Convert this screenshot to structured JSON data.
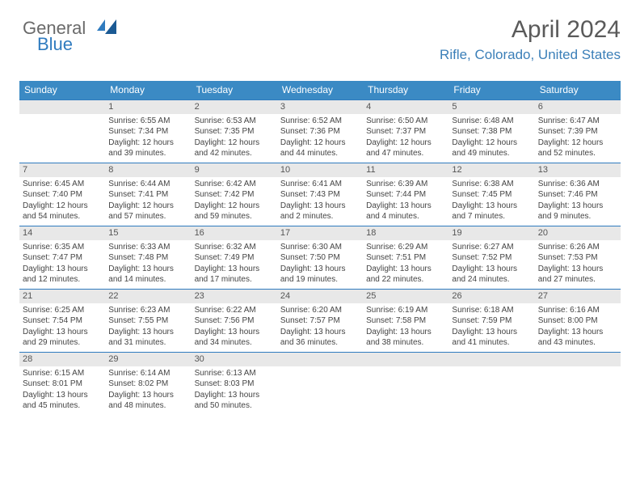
{
  "logo": {
    "line1": "General",
    "line2": "Blue"
  },
  "title": "April 2024",
  "subtitle": "Rifle, Colorado, United States",
  "colors": {
    "header_bg": "#3b8ac4",
    "accent": "#2f7bbf",
    "daynum_bg": "#e8e8e8",
    "text": "#444444"
  },
  "day_names": [
    "Sunday",
    "Monday",
    "Tuesday",
    "Wednesday",
    "Thursday",
    "Friday",
    "Saturday"
  ],
  "weeks": [
    [
      {
        "n": "",
        "sr": "",
        "ss": "",
        "dl": ""
      },
      {
        "n": "1",
        "sr": "Sunrise: 6:55 AM",
        "ss": "Sunset: 7:34 PM",
        "dl": "Daylight: 12 hours and 39 minutes."
      },
      {
        "n": "2",
        "sr": "Sunrise: 6:53 AM",
        "ss": "Sunset: 7:35 PM",
        "dl": "Daylight: 12 hours and 42 minutes."
      },
      {
        "n": "3",
        "sr": "Sunrise: 6:52 AM",
        "ss": "Sunset: 7:36 PM",
        "dl": "Daylight: 12 hours and 44 minutes."
      },
      {
        "n": "4",
        "sr": "Sunrise: 6:50 AM",
        "ss": "Sunset: 7:37 PM",
        "dl": "Daylight: 12 hours and 47 minutes."
      },
      {
        "n": "5",
        "sr": "Sunrise: 6:48 AM",
        "ss": "Sunset: 7:38 PM",
        "dl": "Daylight: 12 hours and 49 minutes."
      },
      {
        "n": "6",
        "sr": "Sunrise: 6:47 AM",
        "ss": "Sunset: 7:39 PM",
        "dl": "Daylight: 12 hours and 52 minutes."
      }
    ],
    [
      {
        "n": "7",
        "sr": "Sunrise: 6:45 AM",
        "ss": "Sunset: 7:40 PM",
        "dl": "Daylight: 12 hours and 54 minutes."
      },
      {
        "n": "8",
        "sr": "Sunrise: 6:44 AM",
        "ss": "Sunset: 7:41 PM",
        "dl": "Daylight: 12 hours and 57 minutes."
      },
      {
        "n": "9",
        "sr": "Sunrise: 6:42 AM",
        "ss": "Sunset: 7:42 PM",
        "dl": "Daylight: 12 hours and 59 minutes."
      },
      {
        "n": "10",
        "sr": "Sunrise: 6:41 AM",
        "ss": "Sunset: 7:43 PM",
        "dl": "Daylight: 13 hours and 2 minutes."
      },
      {
        "n": "11",
        "sr": "Sunrise: 6:39 AM",
        "ss": "Sunset: 7:44 PM",
        "dl": "Daylight: 13 hours and 4 minutes."
      },
      {
        "n": "12",
        "sr": "Sunrise: 6:38 AM",
        "ss": "Sunset: 7:45 PM",
        "dl": "Daylight: 13 hours and 7 minutes."
      },
      {
        "n": "13",
        "sr": "Sunrise: 6:36 AM",
        "ss": "Sunset: 7:46 PM",
        "dl": "Daylight: 13 hours and 9 minutes."
      }
    ],
    [
      {
        "n": "14",
        "sr": "Sunrise: 6:35 AM",
        "ss": "Sunset: 7:47 PM",
        "dl": "Daylight: 13 hours and 12 minutes."
      },
      {
        "n": "15",
        "sr": "Sunrise: 6:33 AM",
        "ss": "Sunset: 7:48 PM",
        "dl": "Daylight: 13 hours and 14 minutes."
      },
      {
        "n": "16",
        "sr": "Sunrise: 6:32 AM",
        "ss": "Sunset: 7:49 PM",
        "dl": "Daylight: 13 hours and 17 minutes."
      },
      {
        "n": "17",
        "sr": "Sunrise: 6:30 AM",
        "ss": "Sunset: 7:50 PM",
        "dl": "Daylight: 13 hours and 19 minutes."
      },
      {
        "n": "18",
        "sr": "Sunrise: 6:29 AM",
        "ss": "Sunset: 7:51 PM",
        "dl": "Daylight: 13 hours and 22 minutes."
      },
      {
        "n": "19",
        "sr": "Sunrise: 6:27 AM",
        "ss": "Sunset: 7:52 PM",
        "dl": "Daylight: 13 hours and 24 minutes."
      },
      {
        "n": "20",
        "sr": "Sunrise: 6:26 AM",
        "ss": "Sunset: 7:53 PM",
        "dl": "Daylight: 13 hours and 27 minutes."
      }
    ],
    [
      {
        "n": "21",
        "sr": "Sunrise: 6:25 AM",
        "ss": "Sunset: 7:54 PM",
        "dl": "Daylight: 13 hours and 29 minutes."
      },
      {
        "n": "22",
        "sr": "Sunrise: 6:23 AM",
        "ss": "Sunset: 7:55 PM",
        "dl": "Daylight: 13 hours and 31 minutes."
      },
      {
        "n": "23",
        "sr": "Sunrise: 6:22 AM",
        "ss": "Sunset: 7:56 PM",
        "dl": "Daylight: 13 hours and 34 minutes."
      },
      {
        "n": "24",
        "sr": "Sunrise: 6:20 AM",
        "ss": "Sunset: 7:57 PM",
        "dl": "Daylight: 13 hours and 36 minutes."
      },
      {
        "n": "25",
        "sr": "Sunrise: 6:19 AM",
        "ss": "Sunset: 7:58 PM",
        "dl": "Daylight: 13 hours and 38 minutes."
      },
      {
        "n": "26",
        "sr": "Sunrise: 6:18 AM",
        "ss": "Sunset: 7:59 PM",
        "dl": "Daylight: 13 hours and 41 minutes."
      },
      {
        "n": "27",
        "sr": "Sunrise: 6:16 AM",
        "ss": "Sunset: 8:00 PM",
        "dl": "Daylight: 13 hours and 43 minutes."
      }
    ],
    [
      {
        "n": "28",
        "sr": "Sunrise: 6:15 AM",
        "ss": "Sunset: 8:01 PM",
        "dl": "Daylight: 13 hours and 45 minutes."
      },
      {
        "n": "29",
        "sr": "Sunrise: 6:14 AM",
        "ss": "Sunset: 8:02 PM",
        "dl": "Daylight: 13 hours and 48 minutes."
      },
      {
        "n": "30",
        "sr": "Sunrise: 6:13 AM",
        "ss": "Sunset: 8:03 PM",
        "dl": "Daylight: 13 hours and 50 minutes."
      },
      {
        "n": "",
        "sr": "",
        "ss": "",
        "dl": ""
      },
      {
        "n": "",
        "sr": "",
        "ss": "",
        "dl": ""
      },
      {
        "n": "",
        "sr": "",
        "ss": "",
        "dl": ""
      },
      {
        "n": "",
        "sr": "",
        "ss": "",
        "dl": ""
      }
    ]
  ]
}
